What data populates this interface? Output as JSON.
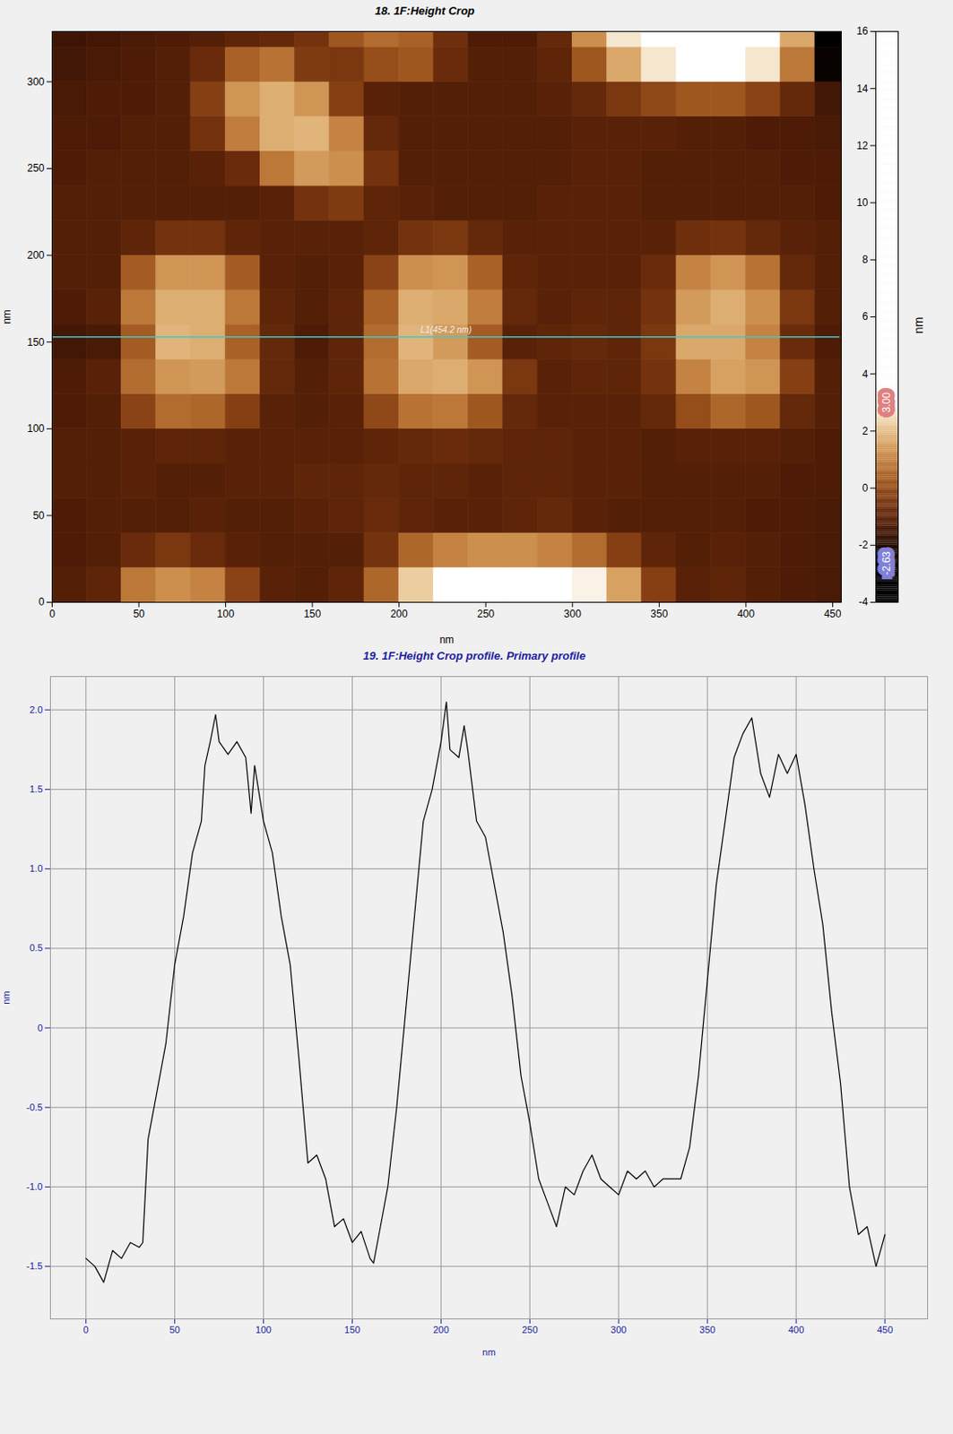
{
  "chart_data": [
    {
      "type": "heatmap",
      "title": "18. 1F:Height Crop",
      "xlabel": "nm",
      "ylabel": "nm",
      "xlim": [
        0,
        455
      ],
      "ylim": [
        0,
        329
      ],
      "xticks": [
        0,
        50,
        100,
        150,
        200,
        250,
        300,
        350,
        400,
        450
      ],
      "yticks": [
        0,
        50,
        100,
        150,
        200,
        250,
        300
      ],
      "x": [
        10,
        30,
        50,
        70,
        90,
        110,
        130,
        150,
        170,
        190,
        210,
        230,
        250,
        270,
        290,
        310,
        330,
        350,
        370,
        390,
        410,
        430,
        450
      ],
      "y": [
        10,
        30,
        50,
        70,
        90,
        110,
        130,
        150,
        170,
        190,
        210,
        230,
        250,
        270,
        290,
        310,
        330
      ],
      "values": [
        [
          -1.2,
          -1.0,
          0.8,
          1.2,
          1.0,
          -0.2,
          -1.1,
          -1.2,
          -1.0,
          0.5,
          2.2,
          3.2,
          3.5,
          3.6,
          3.4,
          2.8,
          1.5,
          -0.3,
          -1.1,
          -1.0,
          -1.2,
          -1.3,
          -1.4
        ],
        [
          -1.3,
          -1.2,
          -0.8,
          -0.5,
          -0.8,
          -1.1,
          -1.2,
          -1.2,
          -1.2,
          -0.6,
          0.5,
          1.0,
          1.2,
          1.2,
          1.0,
          0.6,
          -0.3,
          -1.0,
          -1.2,
          -1.1,
          -1.2,
          -1.3,
          -1.4
        ],
        [
          -1.3,
          -1.2,
          -1.2,
          -1.2,
          -1.1,
          -1.2,
          -1.2,
          -1.1,
          -1.0,
          -0.8,
          -1.0,
          -1.1,
          -1.1,
          -1.0,
          -0.9,
          -1.1,
          -1.2,
          -1.2,
          -1.2,
          -1.2,
          -1.3,
          -1.3,
          -1.4
        ],
        [
          -1.2,
          -1.2,
          -1.1,
          -1.2,
          -1.2,
          -1.1,
          -1.1,
          -1.0,
          -1.0,
          -0.9,
          -1.0,
          -1.0,
          -1.1,
          -1.0,
          -1.0,
          -1.1,
          -1.1,
          -1.2,
          -1.2,
          -1.2,
          -1.2,
          -1.3,
          -1.3
        ],
        [
          -1.2,
          -1.2,
          -1.1,
          -1.0,
          -1.0,
          -1.1,
          -1.1,
          -1.1,
          -1.1,
          -1.0,
          -0.9,
          -0.8,
          -0.9,
          -1.0,
          -1.0,
          -1.1,
          -1.1,
          -1.2,
          -1.1,
          -1.1,
          -1.1,
          -1.2,
          -1.3
        ],
        [
          -1.3,
          -1.2,
          -0.2,
          0.6,
          0.5,
          -0.3,
          -1.1,
          -1.2,
          -1.1,
          -0.1,
          0.7,
          0.8,
          0.2,
          -0.9,
          -1.1,
          -1.1,
          -1.1,
          -0.9,
          0.0,
          0.5,
          0.2,
          -0.9,
          -1.2
        ],
        [
          -1.3,
          -1.1,
          0.6,
          1.3,
          1.4,
          0.8,
          -0.9,
          -1.2,
          -1.0,
          0.7,
          1.6,
          1.7,
          1.3,
          -0.5,
          -1.1,
          -1.0,
          -1.0,
          -0.6,
          1.0,
          1.5,
          1.3,
          -0.3,
          -1.2
        ],
        [
          -1.5,
          -1.4,
          0.3,
          1.8,
          1.7,
          0.4,
          -0.9,
          -1.3,
          -1.0,
          0.6,
          1.8,
          1.4,
          0.3,
          -1.1,
          -1.0,
          -0.9,
          -1.0,
          -0.5,
          1.6,
          1.6,
          1.0,
          -0.8,
          -1.3
        ],
        [
          -1.3,
          -1.1,
          0.8,
          1.7,
          1.7,
          0.8,
          -1.0,
          -1.2,
          -1.0,
          0.4,
          1.7,
          1.6,
          0.9,
          -0.9,
          -1.1,
          -1.0,
          -1.0,
          -0.6,
          1.4,
          1.7,
          1.2,
          -0.5,
          -1.2
        ],
        [
          -1.2,
          -1.2,
          0.3,
          1.3,
          1.3,
          0.3,
          -1.1,
          -1.2,
          -1.1,
          -0.2,
          1.2,
          1.3,
          0.4,
          -1.0,
          -1.1,
          -1.1,
          -1.1,
          -0.8,
          1.0,
          1.3,
          0.7,
          -0.9,
          -1.2
        ],
        [
          -1.2,
          -1.2,
          -1.0,
          -0.6,
          -0.6,
          -1.0,
          -1.1,
          -1.1,
          -1.1,
          -1.0,
          -0.6,
          -0.5,
          -0.9,
          -1.1,
          -1.1,
          -1.1,
          -1.1,
          -1.1,
          -0.7,
          -0.6,
          -0.9,
          -1.1,
          -1.2
        ],
        [
          -1.2,
          -1.2,
          -1.2,
          -1.2,
          -1.2,
          -1.2,
          -1.1,
          -0.6,
          -0.4,
          -1.0,
          -1.1,
          -1.2,
          -1.2,
          -1.2,
          -1.1,
          -1.1,
          -1.1,
          -1.2,
          -1.2,
          -1.2,
          -1.2,
          -1.2,
          -1.3
        ],
        [
          -1.3,
          -1.2,
          -1.2,
          -1.2,
          -1.1,
          -0.8,
          0.8,
          1.4,
          1.2,
          -0.6,
          -1.2,
          -1.2,
          -1.2,
          -1.2,
          -1.2,
          -1.1,
          -1.1,
          -1.2,
          -1.2,
          -1.2,
          -1.2,
          -1.3,
          -1.3
        ],
        [
          -1.3,
          -1.3,
          -1.2,
          -1.2,
          -0.6,
          0.9,
          1.7,
          1.8,
          1.0,
          -0.9,
          -1.2,
          -1.2,
          -1.2,
          -1.2,
          -1.2,
          -1.1,
          -1.1,
          -1.1,
          -1.2,
          -1.2,
          -1.3,
          -1.3,
          -1.4
        ],
        [
          -1.4,
          -1.3,
          -1.3,
          -1.2,
          -0.3,
          1.3,
          1.7,
          1.3,
          -0.3,
          -1.1,
          -1.2,
          -1.2,
          -1.2,
          -1.2,
          -1.1,
          -0.9,
          -0.5,
          -0.1,
          0.2,
          0.2,
          -0.2,
          -0.9,
          -1.5
        ],
        [
          -1.5,
          -1.4,
          -1.3,
          -1.2,
          -0.8,
          0.4,
          0.7,
          -0.4,
          -0.5,
          0.0,
          0.2,
          -0.8,
          -1.2,
          -1.2,
          -1.0,
          0.2,
          1.6,
          2.6,
          3.2,
          3.2,
          2.6,
          0.8,
          -2.5
        ],
        [
          -1.6,
          -1.5,
          -1.4,
          -1.3,
          -1.2,
          -1.0,
          -0.9,
          -0.6,
          0.2,
          0.6,
          0.4,
          -0.7,
          -1.3,
          -1.3,
          -0.9,
          1.2,
          2.6,
          3.5,
          3.8,
          3.8,
          3.4,
          1.6,
          -3.0
        ]
      ],
      "colorbar": {
        "label": "nm",
        "range": [
          -4,
          16
        ],
        "ticks": [
          -4,
          -2,
          0,
          2,
          4,
          6,
          8,
          10,
          12,
          14,
          16
        ],
        "clim": [
          {
            "value": -2.63,
            "label": "-2.63"
          },
          {
            "value": 3,
            "label": "3.00"
          }
        ]
      },
      "annotations": [
        {
          "text": "L1(454.2 nm)",
          "x1": 0,
          "x2": 454.2,
          "y": 153,
          "color": "#40c8c8"
        }
      ]
    },
    {
      "type": "line",
      "title": "19. 1F:Height Crop profile. Primary profile",
      "xlabel": "nm",
      "ylabel": "nm",
      "xlim": [
        -20,
        474
      ],
      "ylim": [
        -1.83,
        2.21
      ],
      "xticks": [
        0,
        50,
        100,
        150,
        200,
        250,
        300,
        350,
        400,
        450
      ],
      "yticks": [
        -1.5,
        {
          "value": -1,
          "label": "-1.0"
        },
        -0.5,
        0,
        0.5,
        {
          "value": 1,
          "label": "1.0"
        },
        1.5,
        {
          "value": 2,
          "label": "2.0"
        }
      ],
      "grid": true,
      "color": "#000000",
      "x": [
        0,
        5,
        10,
        15,
        20,
        25,
        30,
        32,
        35,
        40,
        45,
        50,
        55,
        60,
        65,
        67,
        70,
        73,
        75,
        80,
        85,
        90,
        93,
        95,
        100,
        105,
        110,
        115,
        120,
        125,
        130,
        135,
        140,
        145,
        150,
        155,
        160,
        162,
        165,
        170,
        175,
        180,
        185,
        190,
        195,
        200,
        203,
        205,
        210,
        213,
        215,
        220,
        225,
        230,
        235,
        240,
        245,
        250,
        255,
        260,
        265,
        270,
        275,
        280,
        285,
        290,
        295,
        300,
        305,
        310,
        315,
        320,
        325,
        330,
        335,
        340,
        345,
        350,
        355,
        360,
        365,
        370,
        375,
        380,
        385,
        390,
        395,
        400,
        405,
        410,
        415,
        420,
        425,
        430,
        435,
        440,
        445,
        450
      ],
      "values": [
        -1.45,
        -1.5,
        -1.6,
        -1.4,
        -1.45,
        -1.35,
        -1.38,
        -1.35,
        -0.7,
        -0.4,
        -0.1,
        0.4,
        0.7,
        1.1,
        1.3,
        1.65,
        1.8,
        1.97,
        1.8,
        1.72,
        1.8,
        1.7,
        1.35,
        1.65,
        1.3,
        1.1,
        0.7,
        0.4,
        -0.2,
        -0.85,
        -0.8,
        -0.95,
        -1.25,
        -1.2,
        -1.35,
        -1.28,
        -1.45,
        -1.48,
        -1.3,
        -1.0,
        -0.5,
        0.1,
        0.7,
        1.3,
        1.5,
        1.8,
        2.05,
        1.75,
        1.7,
        1.9,
        1.75,
        1.3,
        1.2,
        0.9,
        0.6,
        0.2,
        -0.3,
        -0.6,
        -0.95,
        -1.1,
        -1.25,
        -1.0,
        -1.05,
        -0.9,
        -0.8,
        -0.95,
        -1.0,
        -1.05,
        -0.9,
        -0.95,
        -0.9,
        -1.0,
        -0.95,
        -0.95,
        -0.95,
        -0.75,
        -0.3,
        0.3,
        0.9,
        1.3,
        1.7,
        1.85,
        1.95,
        1.6,
        1.45,
        1.72,
        1.6,
        1.72,
        1.4,
        1.0,
        0.65,
        0.1,
        -0.35,
        -1.0,
        -1.3,
        -1.25,
        -1.5,
        -1.3
      ]
    }
  ]
}
